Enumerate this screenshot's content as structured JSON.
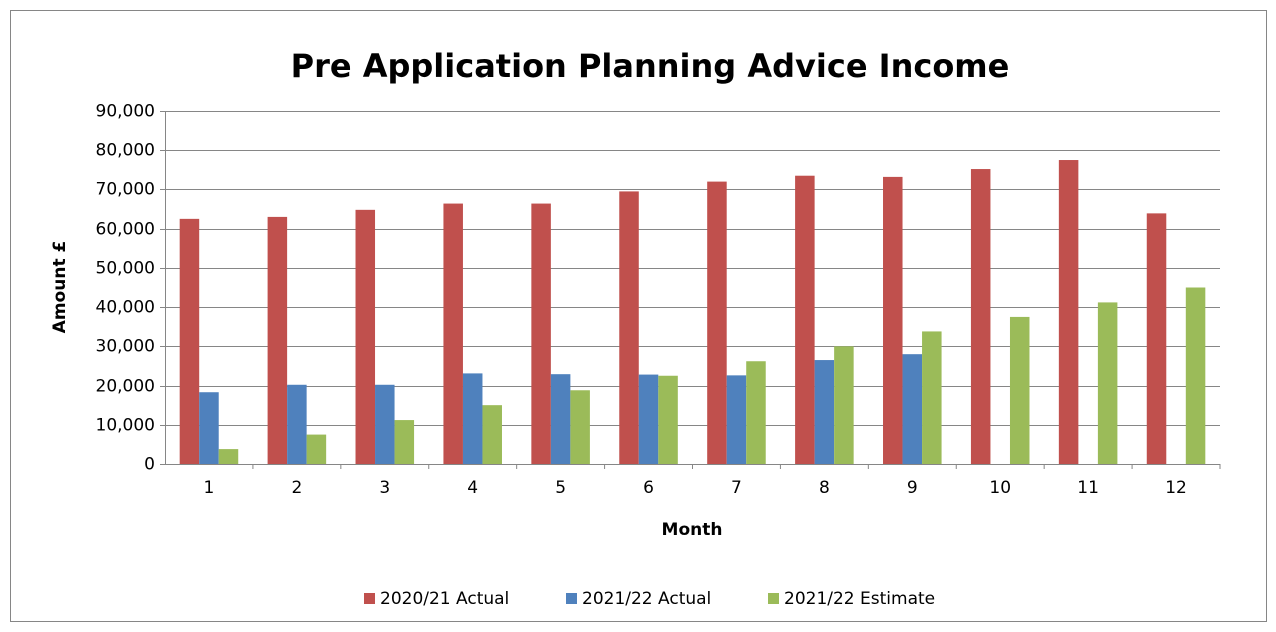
{
  "chart_data": {
    "type": "bar",
    "title": "Pre Application Planning Advice Income",
    "x_label": "Month",
    "y_label": "Amount £",
    "categories": [
      "1",
      "2",
      "3",
      "4",
      "5",
      "6",
      "7",
      "8",
      "9",
      "10",
      "11",
      "12"
    ],
    "series": [
      {
        "name": "2020/21 Actual",
        "color": "#c0504d",
        "values": [
          62500,
          63000,
          64800,
          66400,
          66400,
          69500,
          72000,
          73500,
          73200,
          75200,
          77500,
          63900
        ]
      },
      {
        "name": "2021/22 Actual",
        "color": "#4f81bd",
        "values": [
          18300,
          20200,
          20200,
          23100,
          22900,
          22800,
          22600,
          26500,
          28000,
          null,
          null,
          null
        ]
      },
      {
        "name": "2021/22 Estimate",
        "color": "#9bbb59",
        "values": [
          3800,
          7500,
          11200,
          15000,
          18800,
          22500,
          26200,
          30000,
          33800,
          37500,
          41200,
          45000
        ]
      }
    ],
    "ylim": [
      0,
      90000
    ],
    "yticks": [
      0,
      {
        "value": 10000,
        "label": "10,000"
      },
      {
        "value": 20000,
        "label": "20,000"
      },
      {
        "value": 30000,
        "label": "30,000"
      },
      {
        "value": 40000,
        "label": "40,000"
      },
      {
        "value": 50000,
        "label": "50,000"
      },
      {
        "value": 60000,
        "label": "60,000"
      },
      {
        "value": 70000,
        "label": "70,000"
      },
      {
        "value": 80000,
        "label": "80,000"
      },
      {
        "value": 90000,
        "label": "90,000"
      }
    ],
    "grid": true,
    "legend": "bottom"
  }
}
